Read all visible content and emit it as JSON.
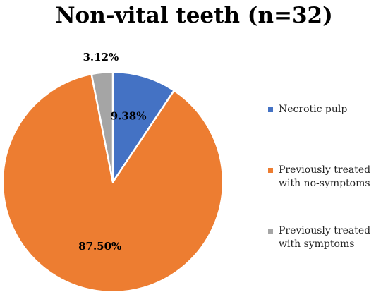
{
  "chart_data": {
    "type": "pie",
    "title": "Non-vital teeth (n=32)",
    "categories": [
      "Necrotic pulp",
      "Previously treated with no-symptoms",
      "Previously treated with symptoms"
    ],
    "values": [
      9.38,
      87.5,
      3.12
    ],
    "data_labels": [
      "9.38%",
      "87.50%",
      "3.12%"
    ],
    "colors": [
      "#4472C4",
      "#ED7D31",
      "#A5A5A5"
    ],
    "legend_position": "right"
  }
}
